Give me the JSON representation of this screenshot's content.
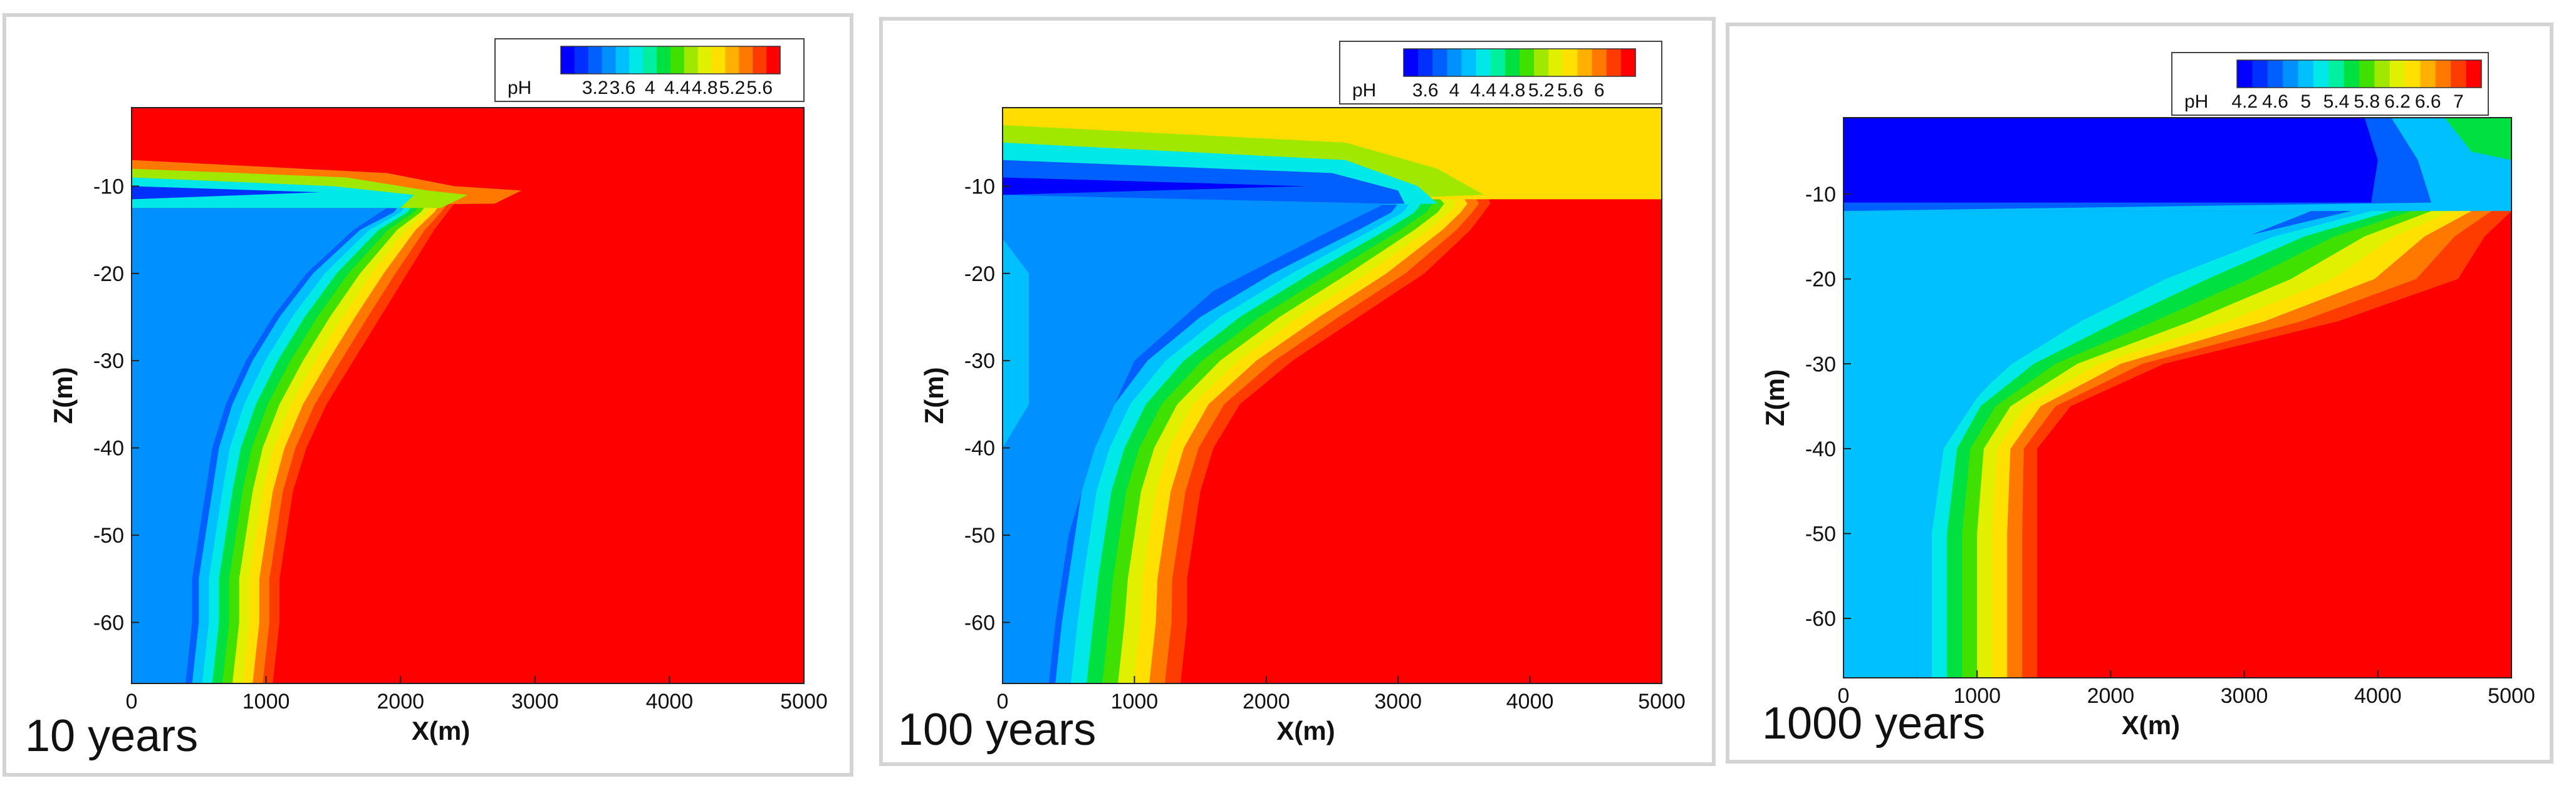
{
  "chart_data": [
    {
      "type": "heatmap",
      "time_label": "10 years",
      "xlabel": "X(m)",
      "ylabel": "Z(m)",
      "xlim": [
        0,
        5000
      ],
      "ylim": [
        -67,
        -1
      ],
      "xticks": [
        0,
        1000,
        2000,
        3000,
        4000,
        5000
      ],
      "yticks": [
        -10,
        -20,
        -30,
        -40,
        -50,
        -60
      ],
      "legend": {
        "variable": "pH",
        "levels": [
          2.8,
          3.0,
          3.2,
          3.4,
          3.6,
          3.8,
          4.0,
          4.2,
          4.4,
          4.6,
          4.8,
          5.0,
          5.2,
          5.4,
          5.6,
          5.8
        ],
        "labels": [
          "3.2",
          "3.6",
          "4",
          "4.4",
          "4.8",
          "5.2",
          "5.6"
        ],
        "label_values": [
          3.2,
          3.6,
          4.0,
          4.4,
          4.8,
          5.2,
          5.6
        ]
      },
      "background_pH": 5.8,
      "plume": [
        {
          "z": -8,
          "x_blue": 0,
          "x_front": 0,
          "shallow_extent": 1200
        },
        {
          "z": -10,
          "x_blue": 1500,
          "x_front": 2300,
          "shallow_extent": 2700
        },
        {
          "z": -11,
          "x_blue": 1900,
          "x_front": 2500,
          "shallow_extent": 2900
        },
        {
          "z": -12,
          "x_blue": 2000,
          "x_front": 2400
        },
        {
          "z": -13,
          "x_blue": 1950,
          "x_front": 2350
        },
        {
          "z": -15,
          "x_blue": 1700,
          "x_front": 2250
        },
        {
          "z": -20,
          "x_blue": 1350,
          "x_front": 2050
        },
        {
          "z": -25,
          "x_blue": 1100,
          "x_front": 1850
        },
        {
          "z": -30,
          "x_blue": 900,
          "x_front": 1650
        },
        {
          "z": -35,
          "x_blue": 750,
          "x_front": 1450
        },
        {
          "z": -40,
          "x_blue": 650,
          "x_front": 1300
        },
        {
          "z": -45,
          "x_blue": 600,
          "x_front": 1200
        },
        {
          "z": -50,
          "x_blue": 550,
          "x_front": 1150
        },
        {
          "z": -55,
          "x_blue": 500,
          "x_front": 1100
        },
        {
          "z": -60,
          "x_blue": 500,
          "x_front": 1100
        },
        {
          "z": -67,
          "x_blue": 450,
          "x_front": 1050
        }
      ]
    },
    {
      "type": "heatmap",
      "time_label": "100 years",
      "xlabel": "X(m)",
      "ylabel": "Z(m)",
      "xlim": [
        0,
        5000
      ],
      "ylim": [
        -67,
        -1
      ],
      "xticks": [
        0,
        1000,
        2000,
        3000,
        4000,
        5000
      ],
      "yticks": [
        -10,
        -20,
        -30,
        -40,
        -50,
        -60
      ],
      "legend": {
        "variable": "pH",
        "levels": [
          3.4,
          3.6,
          3.8,
          4.0,
          4.2,
          4.4,
          4.6,
          4.8,
          5.0,
          5.2,
          5.4,
          5.6,
          5.8,
          6.0,
          6.2,
          6.4
        ],
        "labels": [
          "3.6",
          "4",
          "4.4",
          "4.8",
          "5.2",
          "5.6",
          "6"
        ],
        "label_values": [
          3.6,
          4.0,
          4.4,
          4.8,
          5.2,
          5.6,
          6.0
        ]
      },
      "background_pH": 6.4,
      "surface_layer": {
        "z_top": -1,
        "z_bottom": -11,
        "pH": 5.6
      },
      "plume": [
        {
          "z": -5,
          "x_blue": 0,
          "x_front": 1200,
          "shallow_extent": 3300
        },
        {
          "z": -8,
          "x_blue": 2200,
          "x_front": 3500
        },
        {
          "z": -10,
          "x_blue": 2800,
          "x_front": 3650
        },
        {
          "z": -12,
          "x_blue": 3000,
          "x_front": 3700
        },
        {
          "z": -13,
          "x_blue": 2950,
          "x_front": 3650
        },
        {
          "z": -15,
          "x_blue": 2700,
          "x_front": 3550
        },
        {
          "z": -20,
          "x_blue": 2050,
          "x_front": 3200
        },
        {
          "z": -25,
          "x_blue": 1500,
          "x_front": 2700
        },
        {
          "z": -30,
          "x_blue": 1100,
          "x_front": 2200
        },
        {
          "z": -35,
          "x_blue": 850,
          "x_front": 1800
        },
        {
          "z": -40,
          "x_blue": 700,
          "x_front": 1600
        },
        {
          "z": -45,
          "x_blue": 600,
          "x_front": 1500
        },
        {
          "z": -50,
          "x_blue": 550,
          "x_front": 1450
        },
        {
          "z": -55,
          "x_blue": 500,
          "x_front": 1400
        },
        {
          "z": -60,
          "x_blue": 450,
          "x_front": 1400
        },
        {
          "z": -67,
          "x_blue": 400,
          "x_front": 1350
        }
      ]
    },
    {
      "type": "heatmap",
      "time_label": "1000 years",
      "xlabel": "X(m)",
      "ylabel": "Z(m)",
      "xlim": [
        0,
        5000
      ],
      "ylim": [
        -67,
        -1
      ],
      "xticks": [
        0,
        1000,
        2000,
        3000,
        4000,
        5000
      ],
      "yticks": [
        -10,
        -20,
        -30,
        -40,
        -50,
        -60
      ],
      "legend": {
        "variable": "pH",
        "levels": [
          4.2,
          4.4,
          4.6,
          4.8,
          5.0,
          5.2,
          5.4,
          5.6,
          5.8,
          6.0,
          6.2,
          6.4,
          6.6,
          6.8,
          7.0,
          7.2
        ],
        "labels": [
          "4.2",
          "4.6",
          "5",
          "5.4",
          "5.8",
          "6.2",
          "6.6",
          "7"
        ],
        "label_values": [
          4.2,
          4.6,
          5.0,
          5.4,
          5.8,
          6.2,
          6.6,
          7.0
        ]
      },
      "background_pH": 7.2,
      "surface_layer": {
        "z_top": -1,
        "z_bottom": -11,
        "x_start": 0,
        "x_end": 3900,
        "pH": 4.2
      },
      "plume": [
        {
          "z": -12,
          "x_blue": 3800,
          "x_front": 5000
        },
        {
          "z": -15,
          "x_blue": 3000,
          "x_front": 4800
        },
        {
          "z": -20,
          "x_blue": 2100,
          "x_front": 4600
        },
        {
          "z": -25,
          "x_blue": 1500,
          "x_front": 3700
        },
        {
          "z": -30,
          "x_blue": 1100,
          "x_front": 2400
        },
        {
          "z": -35,
          "x_blue": 800,
          "x_front": 1700
        },
        {
          "z": -40,
          "x_blue": 650,
          "x_front": 1450
        },
        {
          "z": -45,
          "x_blue": 600,
          "x_front": 1450
        },
        {
          "z": -50,
          "x_blue": 550,
          "x_front": 1450
        },
        {
          "z": -55,
          "x_blue": 550,
          "x_front": 1450
        },
        {
          "z": -60,
          "x_blue": 550,
          "x_front": 1450
        },
        {
          "z": -67,
          "x_blue": 550,
          "x_front": 1450
        }
      ]
    }
  ],
  "colors": {
    "ramp": [
      "#0000ff",
      "#0030ff",
      "#0060ff",
      "#0090ff",
      "#00c0ff",
      "#00e8e8",
      "#00f0a0",
      "#00e040",
      "#40e000",
      "#a0e800",
      "#e0f000",
      "#ffe000",
      "#ffb000",
      "#ff7800",
      "#ff3c00",
      "#ff0000"
    ],
    "surface_100y": "#ffdd00"
  }
}
